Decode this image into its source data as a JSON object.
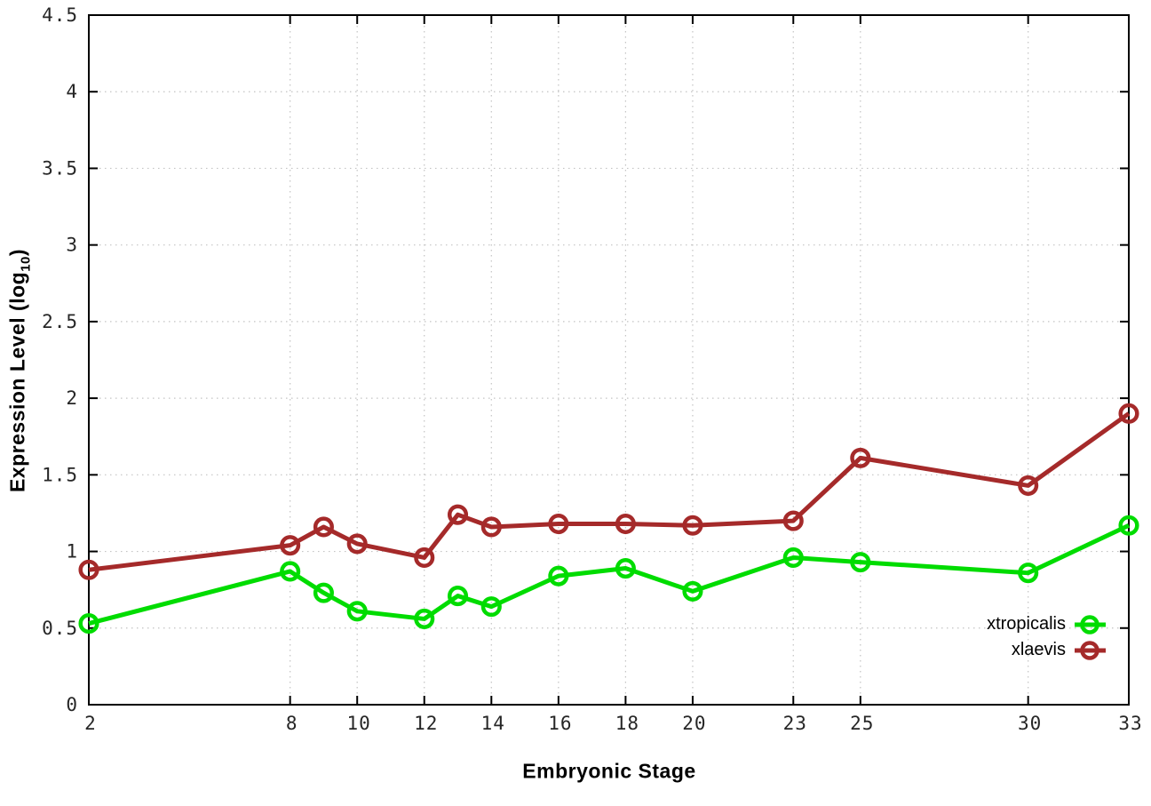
{
  "page": {
    "background": "#ffffff"
  },
  "chart_data": {
    "type": "line",
    "title": "",
    "xlabel": "Embryonic Stage",
    "ylabel_prefix": "Expression Level (log",
    "ylabel_subscript": "10",
    "ylabel_suffix": ")",
    "xlim": [
      2,
      33
    ],
    "ylim": [
      0,
      4.5
    ],
    "xticks": [
      2,
      8,
      10,
      12,
      14,
      16,
      18,
      20,
      23,
      25,
      30,
      33
    ],
    "yticks": [
      0,
      0.5,
      1,
      1.5,
      2,
      2.5,
      3,
      3.5,
      4,
      4.5
    ],
    "grid": "dotted",
    "legend_position": "inside bottom-right",
    "x": [
      2,
      8,
      9,
      10,
      12,
      13,
      14,
      16,
      18,
      20,
      23,
      25,
      30,
      33
    ],
    "series": [
      {
        "name": "xtropicalis",
        "color": "#00dc00",
        "marker": "open-circle",
        "values": [
          0.53,
          0.87,
          0.73,
          0.61,
          0.56,
          0.71,
          0.64,
          0.84,
          0.89,
          0.74,
          0.96,
          0.93,
          0.86,
          1.17
        ]
      },
      {
        "name": "xlaevis",
        "color": "#a52a2a",
        "marker": "open-circle",
        "values": [
          0.88,
          1.04,
          1.16,
          1.05,
          0.96,
          1.24,
          1.16,
          1.18,
          1.18,
          1.17,
          1.2,
          1.61,
          1.43,
          1.9
        ]
      }
    ],
    "axis_color": "#000000",
    "grid_color": "#c3c3c3",
    "tick_label_color": "#262626"
  }
}
